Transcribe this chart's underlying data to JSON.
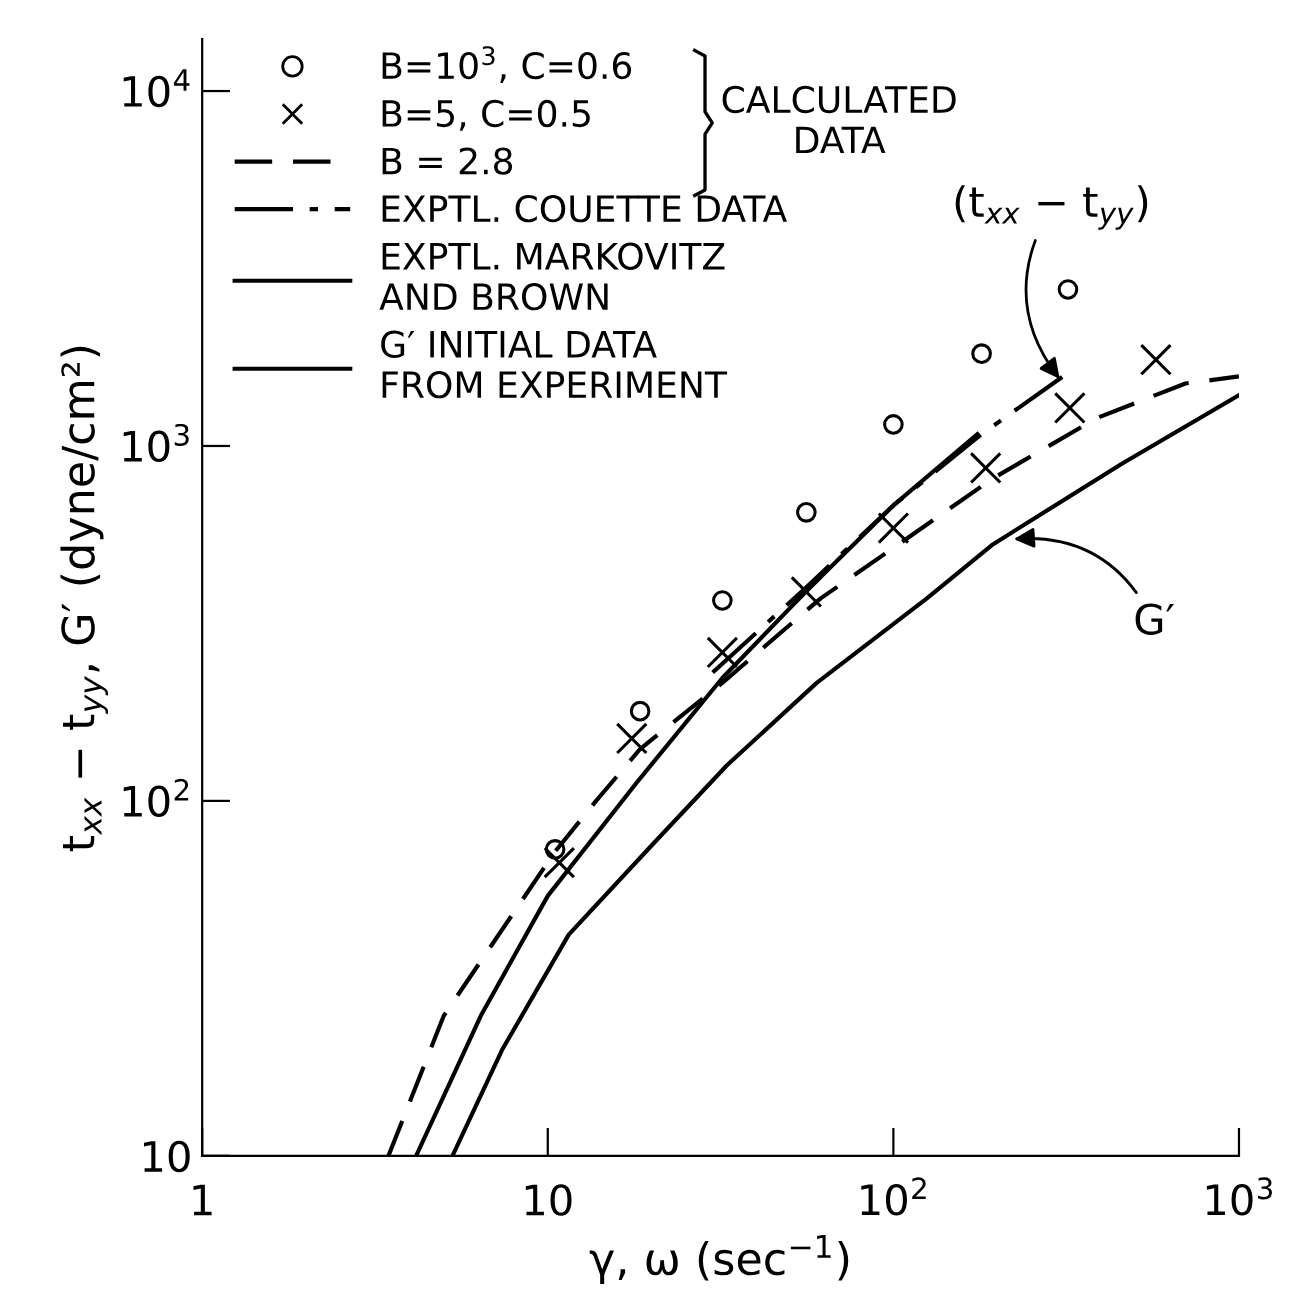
{
  "chart_data": {
    "type": "line",
    "xlabel": "γ, ω (sec$^{−1}$)",
    "ylabel": "t$_{xx}$ − t$_{yy}$, G′ (dyne/cm²)",
    "log": "xy",
    "xlim": [
      1,
      1000
    ],
    "ylim": [
      10,
      14000
    ],
    "xticks": [
      1,
      10,
      {
        "value": 100,
        "label": "10$^{2}$"
      },
      {
        "value": 1000,
        "label": "10$^{3}$"
      }
    ],
    "yticks": [
      10,
      {
        "value": 100,
        "label": "10$^{2}$"
      },
      {
        "value": 1000,
        "label": "10$^{3}$"
      },
      {
        "value": 10000,
        "label": "10$^{4}$"
      }
    ],
    "grid": false,
    "legend": "top left",
    "series": [
      {
        "name": "B=10$^{3}$, C=0.6",
        "type": "scatter",
        "marker": "circle",
        "color": "#000000",
        "x": [
          10.5,
          18.5,
          32,
          56,
          100,
          180,
          320
        ],
        "values": [
          73,
          179,
          367,
          650,
          1150,
          1820,
          2760
        ]
      },
      {
        "name": "B=5, C=0.5",
        "type": "scatter",
        "marker": "cross",
        "color": "#000000",
        "x": [
          10.8,
          17.5,
          32,
          56,
          100,
          185,
          324,
          575
        ],
        "values": [
          67,
          150,
          262,
          388,
          587,
          867,
          1280,
          1750
        ]
      },
      {
        "name": "B = 2.8",
        "line_style": "dashed",
        "color": "#000000",
        "x": [
          3.46,
          5,
          10.5,
          13.8,
          18.5,
          32,
          61.6,
          100,
          194,
          389,
          700,
          1000
        ],
        "values": [
          10,
          24.8,
          72,
          100,
          140,
          215,
          372,
          516,
          810,
          1200,
          1500,
          1570
        ]
      },
      {
        "name": "EXPTL. COUETTE DATA",
        "line_style": "dashdot",
        "color": "#000000",
        "x": [
          30,
          56,
          100,
          180,
          324
        ],
        "values": [
          230,
          400,
          680,
          1080,
          1620
        ]
      },
      {
        "name": "EXPTL. MARKOVITZ\nAND BROWN",
        "line_style": "solid",
        "color": "#000000",
        "x": [
          4.16,
          6.4,
          10,
          18,
          32,
          56,
          100,
          175
        ],
        "values": [
          10,
          24.8,
          54,
          112,
          222,
          390,
          680,
          1080
        ]
      },
      {
        "name": "G′ INITIAL DATA\nFROM EXPERIMENT",
        "line_style": "solid",
        "color": "#000000",
        "x": [
          5.3,
          7.4,
          11.5,
          20,
          33,
          60,
          125,
          194,
          457,
          1000
        ],
        "values": [
          10,
          20,
          42,
          75,
          126,
          215,
          372,
          528,
          890,
          1390
        ]
      }
    ],
    "annotations": [
      "CALCULATED\nDATA",
      {
        "text": "(t$_{xx}$ − t$_{yy}$)",
        "x": 310,
        "y": 1500
      },
      {
        "text": "G′",
        "x": 215,
        "y": 545
      }
    ]
  }
}
